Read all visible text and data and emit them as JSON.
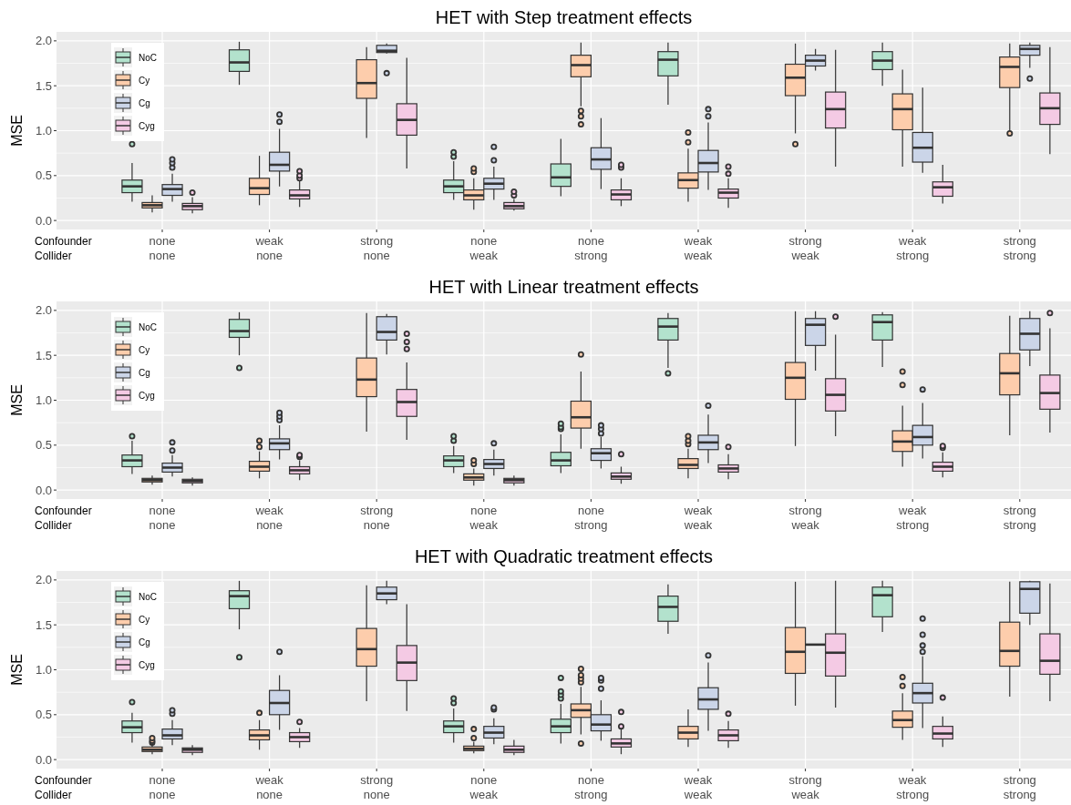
{
  "chart_data": [
    {
      "type": "box",
      "title": "HET with Step treatment effects",
      "ylabel": "MSE",
      "categories": [
        "none\nnone",
        "weak\nnone",
        "strong\nnone",
        "none\nweak",
        "none\nstrong",
        "weak\nweak",
        "strong\nweak",
        "weak\nstrong",
        "strong\nstrong"
      ],
      "annotations": [
        "Confounder",
        "Collider"
      ],
      "ylim": [
        -0.1,
        2.1
      ],
      "yticks": [
        {
          "value": 0,
          "label": "0.0"
        },
        {
          "value": 0.5,
          "label": "0.5"
        },
        {
          "value": 1,
          "label": "1.0"
        },
        {
          "value": 1.5,
          "label": "1.5"
        },
        {
          "value": 2,
          "label": "2.0"
        }
      ],
      "grid": true,
      "legend": "top left",
      "series": [
        {
          "name": "NoC",
          "color": "#b3e2cd",
          "boxes": [
            {
              "low": 0.21,
              "q1": 0.31,
              "median": 0.38,
              "q3": 0.45,
              "high": 0.64,
              "outliers": [
                0.85
              ]
            },
            {
              "low": 1.51,
              "q1": 1.66,
              "median": 1.76,
              "q3": 1.9,
              "high": 1.99
            },
            null,
            {
              "low": 0.23,
              "q1": 0.31,
              "median": 0.38,
              "q3": 0.45,
              "high": 0.66,
              "outliers": [
                0.71,
                0.76
              ]
            },
            {
              "low": 0.27,
              "q1": 0.38,
              "median": 0.48,
              "q3": 0.63,
              "high": 0.91
            },
            {
              "low": 1.29,
              "q1": 1.61,
              "median": 1.79,
              "q3": 1.88,
              "high": 1.98
            },
            null,
            {
              "low": 1.5,
              "q1": 1.68,
              "median": 1.78,
              "q3": 1.88,
              "high": 1.98
            },
            null
          ]
        },
        {
          "name": "Cy",
          "color": "#fdcdac",
          "boxes": [
            {
              "low": 0.09,
              "q1": 0.14,
              "median": 0.17,
              "q3": 0.2,
              "high": 0.28
            },
            {
              "low": 0.17,
              "q1": 0.29,
              "median": 0.36,
              "q3": 0.47,
              "high": 0.72
            },
            {
              "low": 0.92,
              "q1": 1.36,
              "median": 1.53,
              "q3": 1.79,
              "high": 1.93
            },
            {
              "low": 0.12,
              "q1": 0.23,
              "median": 0.28,
              "q3": 0.34,
              "high": 0.47,
              "outliers": [
                0.54,
                0.58
              ]
            },
            {
              "low": 1.27,
              "q1": 1.6,
              "median": 1.73,
              "q3": 1.84,
              "high": 1.98,
              "outliers": [
                1.07,
                1.16,
                1.22
              ]
            },
            {
              "low": 0.21,
              "q1": 0.36,
              "median": 0.45,
              "q3": 0.53,
              "high": 0.8,
              "outliers": [
                0.87,
                0.98
              ]
            },
            {
              "low": 0.97,
              "q1": 1.39,
              "median": 1.59,
              "q3": 1.74,
              "high": 1.97,
              "outliers": [
                0.85
              ]
            },
            {
              "low": 0.6,
              "q1": 1.01,
              "median": 1.24,
              "q3": 1.41,
              "high": 1.68
            },
            {
              "low": 1.0,
              "q1": 1.48,
              "median": 1.71,
              "q3": 1.82,
              "high": 1.97,
              "outliers": [
                0.97
              ]
            }
          ]
        },
        {
          "name": "Cg",
          "color": "#cbd5e8",
          "boxes": [
            {
              "low": 0.21,
              "q1": 0.28,
              "median": 0.35,
              "q3": 0.4,
              "high": 0.52,
              "outliers": [
                0.59,
                0.64,
                0.68
              ]
            },
            {
              "low": 0.38,
              "q1": 0.55,
              "median": 0.62,
              "q3": 0.76,
              "high": 1.02,
              "outliers": [
                1.1,
                1.18
              ]
            },
            {
              "low": 1.86,
              "q1": 1.87,
              "median": 1.89,
              "q3": 1.95,
              "high": 1.97,
              "outliers": [
                1.64
              ]
            },
            {
              "low": 0.23,
              "q1": 0.35,
              "median": 0.41,
              "q3": 0.47,
              "high": 0.6,
              "outliers": [
                0.67,
                0.82
              ]
            },
            {
              "low": 0.35,
              "q1": 0.57,
              "median": 0.68,
              "q3": 0.81,
              "high": 1.14
            },
            {
              "low": 0.34,
              "q1": 0.54,
              "median": 0.64,
              "q3": 0.78,
              "high": 1.09,
              "outliers": [
                1.16,
                1.24
              ]
            },
            {
              "low": 1.67,
              "q1": 1.72,
              "median": 1.78,
              "q3": 1.84,
              "high": 1.91
            },
            {
              "low": 0.53,
              "q1": 0.65,
              "median": 0.81,
              "q3": 0.98,
              "high": 1.48
            },
            {
              "low": 1.7,
              "q1": 1.84,
              "median": 1.91,
              "q3": 1.95,
              "high": 1.98,
              "outliers": [
                1.58
              ]
            }
          ]
        },
        {
          "name": "Cyg",
          "color": "#f4cae4",
          "boxes": [
            {
              "low": 0.08,
              "q1": 0.12,
              "median": 0.16,
              "q3": 0.19,
              "high": 0.26,
              "outliers": [
                0.31
              ]
            },
            {
              "low": 0.15,
              "q1": 0.24,
              "median": 0.28,
              "q3": 0.34,
              "high": 0.44,
              "outliers": [
                0.47,
                0.5,
                0.55
              ]
            },
            {
              "low": 0.58,
              "q1": 0.95,
              "median": 1.12,
              "q3": 1.3,
              "high": 1.81
            },
            {
              "low": 0.11,
              "q1": 0.13,
              "median": 0.16,
              "q3": 0.2,
              "high": 0.24,
              "outliers": [
                0.28,
                0.32
              ]
            },
            {
              "low": 0.16,
              "q1": 0.23,
              "median": 0.29,
              "q3": 0.34,
              "high": 0.47,
              "outliers": [
                0.59,
                0.62
              ]
            },
            {
              "low": 0.14,
              "q1": 0.25,
              "median": 0.31,
              "q3": 0.35,
              "high": 0.47,
              "outliers": [
                0.52,
                0.6
              ]
            },
            {
              "low": 0.6,
              "q1": 1.03,
              "median": 1.24,
              "q3": 1.43,
              "high": 1.9
            },
            {
              "low": 0.19,
              "q1": 0.27,
              "median": 0.37,
              "q3": 0.43,
              "high": 0.62
            },
            {
              "low": 0.74,
              "q1": 1.07,
              "median": 1.25,
              "q3": 1.42,
              "high": 1.93
            }
          ]
        }
      ]
    },
    {
      "type": "box",
      "title": "HET with Linear treatment effects",
      "ylabel": "MSE",
      "categories": [
        "none\nnone",
        "weak\nnone",
        "strong\nnone",
        "none\nweak",
        "none\nstrong",
        "weak\nweak",
        "strong\nweak",
        "weak\nstrong",
        "strong\nstrong"
      ],
      "annotations": [
        "Confounder",
        "Collider"
      ],
      "ylim": [
        -0.1,
        2.1
      ],
      "yticks": [
        {
          "value": 0,
          "label": "0.0"
        },
        {
          "value": 0.5,
          "label": "0.5"
        },
        {
          "value": 1,
          "label": "1.0"
        },
        {
          "value": 1.5,
          "label": "1.5"
        },
        {
          "value": 2,
          "label": "2.0"
        }
      ],
      "grid": true,
      "legend": "top left",
      "series": [
        {
          "name": "NoC",
          "color": "#b3e2cd",
          "boxes": [
            {
              "low": 0.18,
              "q1": 0.26,
              "median": 0.33,
              "q3": 0.39,
              "high": 0.55,
              "outliers": [
                0.6
              ]
            },
            {
              "low": 1.5,
              "q1": 1.7,
              "median": 1.77,
              "q3": 1.9,
              "high": 1.98,
              "outliers": [
                1.36
              ]
            },
            null,
            {
              "low": 0.19,
              "q1": 0.26,
              "median": 0.33,
              "q3": 0.38,
              "high": 0.49,
              "outliers": [
                0.55,
                0.6
              ]
            },
            {
              "low": 0.19,
              "q1": 0.27,
              "median": 0.33,
              "q3": 0.42,
              "high": 0.62,
              "outliers": [
                0.68,
                0.7,
                0.74
              ]
            },
            {
              "low": 1.36,
              "q1": 1.67,
              "median": 1.82,
              "q3": 1.91,
              "high": 1.97,
              "outliers": [
                1.3
              ]
            },
            null,
            {
              "low": 1.37,
              "q1": 1.67,
              "median": 1.87,
              "q3": 1.95,
              "high": 1.98
            },
            null
          ]
        },
        {
          "name": "Cy",
          "color": "#fdcdac",
          "boxes": [
            {
              "low": 0.06,
              "q1": 0.09,
              "median": 0.11,
              "q3": 0.13,
              "high": 0.16
            },
            {
              "low": 0.13,
              "q1": 0.21,
              "median": 0.26,
              "q3": 0.32,
              "high": 0.43,
              "outliers": [
                0.48,
                0.55
              ]
            },
            {
              "low": 0.65,
              "q1": 1.04,
              "median": 1.23,
              "q3": 1.47,
              "high": 1.97
            },
            {
              "low": 0.05,
              "q1": 0.11,
              "median": 0.14,
              "q3": 0.18,
              "high": 0.24,
              "outliers": [
                0.29,
                0.33
              ]
            },
            {
              "low": 0.46,
              "q1": 0.69,
              "median": 0.81,
              "q3": 0.99,
              "high": 1.32,
              "outliers": [
                1.51
              ]
            },
            {
              "low": 0.13,
              "q1": 0.24,
              "median": 0.28,
              "q3": 0.35,
              "high": 0.46,
              "outliers": [
                0.51,
                0.55,
                0.6
              ]
            },
            {
              "low": 0.49,
              "q1": 1.01,
              "median": 1.25,
              "q3": 1.42,
              "high": 1.99
            },
            {
              "low": 0.26,
              "q1": 0.43,
              "median": 0.54,
              "q3": 0.66,
              "high": 0.94,
              "outliers": [
                1.17,
                1.32
              ]
            },
            {
              "low": 0.61,
              "q1": 1.06,
              "median": 1.3,
              "q3": 1.52,
              "high": 1.94
            }
          ]
        },
        {
          "name": "Cg",
          "color": "#cbd5e8",
          "boxes": [
            {
              "low": 0.15,
              "q1": 0.2,
              "median": 0.25,
              "q3": 0.3,
              "high": 0.39,
              "outliers": [
                0.44,
                0.53
              ]
            },
            {
              "low": 0.34,
              "q1": 0.45,
              "median": 0.52,
              "q3": 0.57,
              "high": 0.72,
              "outliers": [
                0.78,
                0.82,
                0.86
              ]
            },
            {
              "low": 1.51,
              "q1": 1.67,
              "median": 1.76,
              "q3": 1.93,
              "high": 1.96
            },
            {
              "low": 0.16,
              "q1": 0.24,
              "median": 0.29,
              "q3": 0.34,
              "high": 0.45,
              "outliers": [
                0.52
              ]
            },
            {
              "low": 0.24,
              "q1": 0.33,
              "median": 0.41,
              "q3": 0.46,
              "high": 0.59,
              "outliers": [
                0.63,
                0.68,
                0.72
              ]
            },
            {
              "low": 0.3,
              "q1": 0.45,
              "median": 0.53,
              "q3": 0.61,
              "high": 0.84,
              "outliers": [
                0.94
              ]
            },
            {
              "low": 1.33,
              "q1": 1.61,
              "median": 1.84,
              "q3": 1.91,
              "high": 1.99
            },
            {
              "low": 0.35,
              "q1": 0.5,
              "median": 0.59,
              "q3": 0.72,
              "high": 0.97,
              "outliers": [
                1.12
              ]
            },
            {
              "low": 1.38,
              "q1": 1.56,
              "median": 1.74,
              "q3": 1.91,
              "high": 1.99
            }
          ]
        },
        {
          "name": "Cyg",
          "color": "#f4cae4",
          "boxes": [
            {
              "low": 0.05,
              "q1": 0.08,
              "median": 0.1,
              "q3": 0.12,
              "high": 0.14
            },
            {
              "low": 0.11,
              "q1": 0.18,
              "median": 0.22,
              "q3": 0.26,
              "high": 0.33,
              "outliers": [
                0.37,
                0.39
              ]
            },
            {
              "low": 0.56,
              "q1": 0.82,
              "median": 0.98,
              "q3": 1.12,
              "high": 1.42,
              "outliers": [
                1.57,
                1.65,
                1.74
              ]
            },
            {
              "low": 0.05,
              "q1": 0.08,
              "median": 0.11,
              "q3": 0.13,
              "high": 0.16
            },
            {
              "low": 0.07,
              "q1": 0.12,
              "median": 0.15,
              "q3": 0.19,
              "high": 0.26,
              "outliers": [
                0.4
              ]
            },
            {
              "low": 0.12,
              "q1": 0.2,
              "median": 0.24,
              "q3": 0.28,
              "high": 0.4,
              "outliers": [
                0.48
              ]
            },
            {
              "low": 0.6,
              "q1": 0.88,
              "median": 1.06,
              "q3": 1.24,
              "high": 1.73,
              "outliers": [
                1.93
              ]
            },
            {
              "low": 0.14,
              "q1": 0.21,
              "median": 0.26,
              "q3": 0.31,
              "high": 0.42,
              "outliers": [
                0.47,
                0.49
              ]
            },
            {
              "low": 0.64,
              "q1": 0.9,
              "median": 1.08,
              "q3": 1.28,
              "high": 1.8,
              "outliers": [
                1.97
              ]
            }
          ]
        }
      ]
    },
    {
      "type": "box",
      "title": "HET with Quadratic treatment effects",
      "ylabel": "MSE",
      "categories": [
        "none\nnone",
        "weak\nnone",
        "strong\nnone",
        "none\nweak",
        "none\nstrong",
        "weak\nweak",
        "strong\nweak",
        "weak\nstrong",
        "strong\nstrong"
      ],
      "annotations": [
        "Confounder",
        "Collider"
      ],
      "ylim": [
        -0.1,
        2.1
      ],
      "yticks": [
        {
          "value": 0,
          "label": "0.0"
        },
        {
          "value": 0.5,
          "label": "0.5"
        },
        {
          "value": 1,
          "label": "1.0"
        },
        {
          "value": 1.5,
          "label": "1.5"
        },
        {
          "value": 2,
          "label": "2.0"
        }
      ],
      "grid": true,
      "legend": "top left",
      "series": [
        {
          "name": "NoC",
          "color": "#b3e2cd",
          "boxes": [
            {
              "low": 0.19,
              "q1": 0.3,
              "median": 0.36,
              "q3": 0.43,
              "high": 0.52,
              "outliers": [
                0.64
              ]
            },
            {
              "low": 1.45,
              "q1": 1.68,
              "median": 1.82,
              "q3": 1.88,
              "high": 1.99,
              "outliers": [
                1.14
              ]
            },
            null,
            {
              "low": 0.19,
              "q1": 0.3,
              "median": 0.37,
              "q3": 0.43,
              "high": 0.57,
              "outliers": [
                0.63,
                0.68
              ]
            },
            {
              "low": 0.18,
              "q1": 0.3,
              "median": 0.37,
              "q3": 0.45,
              "high": 0.62,
              "outliers": [
                0.68,
                0.72,
                0.76,
                0.91
              ]
            },
            {
              "low": 1.4,
              "q1": 1.54,
              "median": 1.7,
              "q3": 1.82,
              "high": 1.95
            },
            null,
            {
              "low": 1.42,
              "q1": 1.59,
              "median": 1.83,
              "q3": 1.92,
              "high": 1.99
            },
            null
          ]
        },
        {
          "name": "Cy",
          "color": "#fdcdac",
          "boxes": [
            {
              "low": 0.06,
              "q1": 0.09,
              "median": 0.11,
              "q3": 0.14,
              "high": 0.17,
              "outliers": [
                0.19,
                0.21,
                0.24
              ]
            },
            {
              "low": 0.11,
              "q1": 0.22,
              "median": 0.27,
              "q3": 0.33,
              "high": 0.44,
              "outliers": [
                0.52
              ]
            },
            {
              "low": 0.65,
              "q1": 1.04,
              "median": 1.23,
              "q3": 1.46,
              "high": 1.94
            },
            {
              "low": 0.07,
              "q1": 0.1,
              "median": 0.12,
              "q3": 0.15,
              "high": 0.2,
              "outliers": [
                0.24,
                0.34
              ]
            },
            {
              "low": 0.28,
              "q1": 0.47,
              "median": 0.55,
              "q3": 0.62,
              "high": 0.81,
              "outliers": [
                0.18,
                0.86,
                0.9,
                0.94,
                1.01
              ]
            },
            {
              "low": 0.14,
              "q1": 0.23,
              "median": 0.3,
              "q3": 0.37,
              "high": 0.56
            },
            {
              "low": 0.6,
              "q1": 0.96,
              "median": 1.2,
              "q3": 1.47,
              "high": 1.98
            },
            {
              "low": 0.22,
              "q1": 0.36,
              "median": 0.44,
              "q3": 0.54,
              "high": 0.74,
              "outliers": [
                0.82,
                0.92
              ]
            },
            {
              "low": 0.7,
              "q1": 1.04,
              "median": 1.21,
              "q3": 1.53,
              "high": 1.98
            }
          ]
        },
        {
          "name": "Cg",
          "color": "#cbd5e8",
          "boxes": [
            {
              "low": 0.16,
              "q1": 0.23,
              "median": 0.27,
              "q3": 0.34,
              "high": 0.44,
              "outliers": [
                0.51,
                0.55
              ]
            },
            {
              "low": 0.33,
              "q1": 0.5,
              "median": 0.63,
              "q3": 0.77,
              "high": 0.94,
              "outliers": [
                1.2
              ]
            },
            {
              "low": 1.73,
              "q1": 1.78,
              "median": 1.85,
              "q3": 1.92,
              "high": 1.99
            },
            {
              "low": 0.17,
              "q1": 0.24,
              "median": 0.3,
              "q3": 0.37,
              "high": 0.46,
              "outliers": [
                0.56,
                0.58
              ]
            },
            {
              "low": 0.21,
              "q1": 0.32,
              "median": 0.39,
              "q3": 0.5,
              "high": 0.66,
              "outliers": [
                0.79,
                0.88,
                0.91
              ]
            },
            {
              "low": 0.32,
              "q1": 0.56,
              "median": 0.67,
              "q3": 0.8,
              "high": 1.08,
              "outliers": [
                1.16
              ]
            },
            {
              "low": 1.28,
              "q1": 1.28,
              "median": 1.28,
              "q3": 1.28,
              "high": 1.28
            },
            {
              "low": 0.35,
              "q1": 0.63,
              "median": 0.74,
              "q3": 0.85,
              "high": 1.15,
              "outliers": [
                1.2,
                1.27,
                1.39,
                1.57
              ]
            },
            {
              "low": 1.5,
              "q1": 1.63,
              "median": 1.9,
              "q3": 1.98,
              "high": 1.99
            }
          ]
        },
        {
          "name": "Cyg",
          "color": "#f4cae4",
          "boxes": [
            {
              "low": 0.05,
              "q1": 0.08,
              "median": 0.11,
              "q3": 0.13,
              "high": 0.16
            },
            {
              "low": 0.13,
              "q1": 0.2,
              "median": 0.25,
              "q3": 0.3,
              "high": 0.35,
              "outliers": [
                0.42
              ]
            },
            {
              "low": 0.54,
              "q1": 0.88,
              "median": 1.08,
              "q3": 1.27,
              "high": 1.73
            },
            {
              "low": 0.05,
              "q1": 0.08,
              "median": 0.11,
              "q3": 0.15,
              "high": 0.22
            },
            {
              "low": 0.06,
              "q1": 0.14,
              "median": 0.18,
              "q3": 0.23,
              "high": 0.34,
              "outliers": [
                0.37,
                0.53
              ]
            },
            {
              "low": 0.13,
              "q1": 0.21,
              "median": 0.27,
              "q3": 0.33,
              "high": 0.43,
              "outliers": [
                0.51
              ]
            },
            {
              "low": 0.58,
              "q1": 0.93,
              "median": 1.19,
              "q3": 1.4,
              "high": 1.99
            },
            {
              "low": 0.14,
              "q1": 0.23,
              "median": 0.29,
              "q3": 0.37,
              "high": 0.48,
              "outliers": [
                0.69
              ]
            },
            {
              "low": 0.65,
              "q1": 0.95,
              "median": 1.1,
              "q3": 1.4,
              "high": 1.96
            }
          ]
        }
      ]
    }
  ]
}
